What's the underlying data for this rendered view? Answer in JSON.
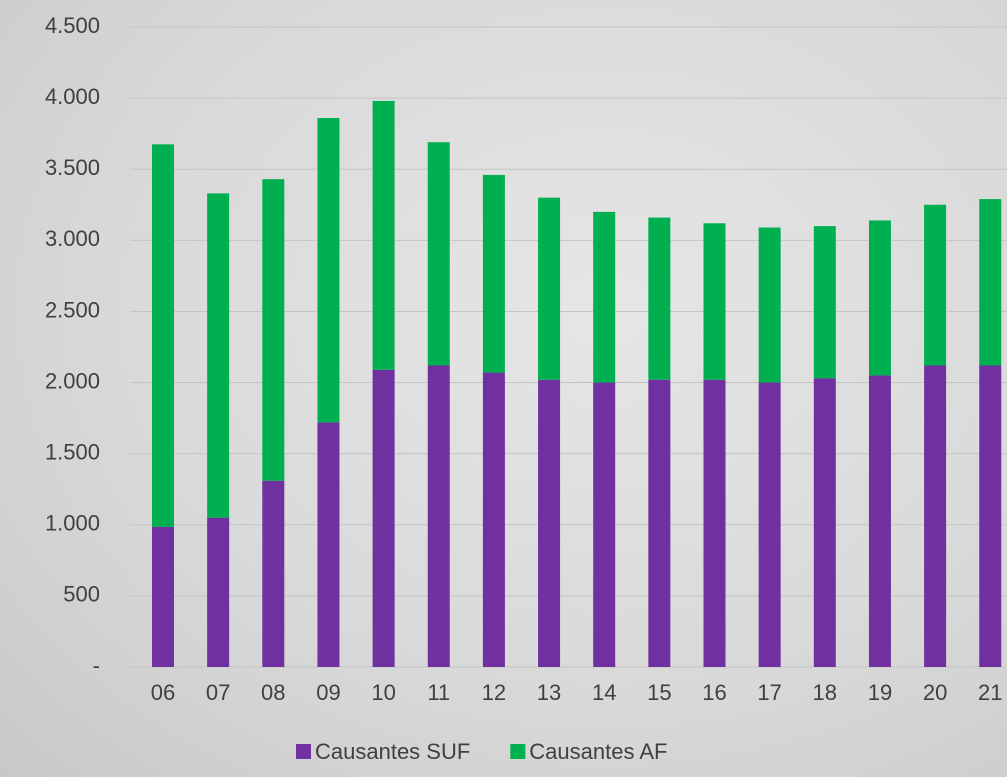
{
  "chart_data": {
    "type": "stacked-bar",
    "categories": [
      "06",
      "07",
      "08",
      "09",
      "10",
      "11",
      "12",
      "13",
      "14",
      "15",
      "16",
      "17",
      "18",
      "19",
      "20",
      "21"
    ],
    "series": [
      {
        "name": "Causantes SUF",
        "color": "#7030a0",
        "values": [
          985,
          1050,
          1310,
          1720,
          2090,
          2120,
          2070,
          2020,
          2000,
          2020,
          2020,
          2000,
          2030,
          2050,
          2120,
          2120
        ]
      },
      {
        "name": "Causantes AF",
        "color": "#00b050",
        "values": [
          2690,
          2280,
          2120,
          2140,
          1890,
          1570,
          1390,
          1280,
          1200,
          1140,
          1100,
          1090,
          1070,
          1090,
          1130,
          1170
        ]
      }
    ],
    "ylim": [
      0,
      4500
    ],
    "yticks": [
      {
        "value": 0,
        "label": "-"
      },
      500,
      {
        "value": 1000,
        "label": "1.000"
      },
      {
        "value": 1500,
        "label": "1.500"
      },
      {
        "value": 2000,
        "label": "2.000"
      },
      {
        "value": 2500,
        "label": "2.500"
      },
      {
        "value": 3000,
        "label": "3.000"
      },
      {
        "value": 3500,
        "label": "3.500"
      },
      {
        "value": 4000,
        "label": "4.000"
      },
      {
        "value": 4500,
        "label": "4.500"
      }
    ],
    "grid": true,
    "legend": "bottom"
  }
}
